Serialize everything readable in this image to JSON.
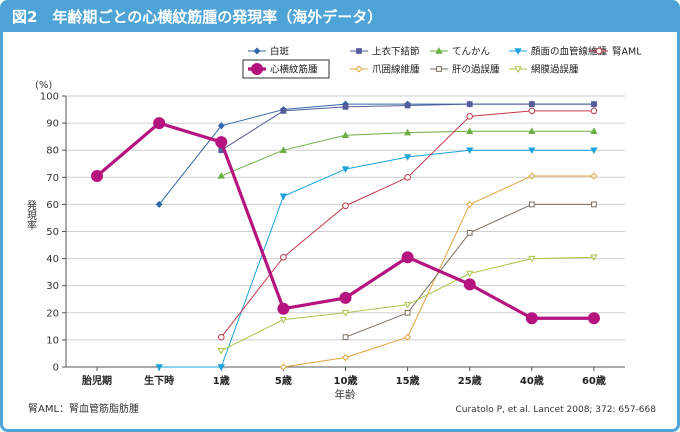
{
  "header": {
    "title": "図2　年齢期ごとの心横紋筋腫の発現率（海外データ）"
  },
  "colors": {
    "header_bg": "#4ea4d6",
    "border": "#4ea4d6",
    "grid": "#cfcfcf",
    "axis": "#555555"
  },
  "footer": {
    "note": "腎AML：腎血管筋脂肪腫",
    "source": "Curatolo P, et al. Lancet 2008; 372: 657-668"
  },
  "chart_data": {
    "type": "line",
    "title": "",
    "xlabel": "年齢",
    "ylabel": "発現率",
    "y_unit": "(%)",
    "ylim": [
      0,
      100
    ],
    "yticks": [
      0,
      10,
      20,
      30,
      40,
      50,
      60,
      70,
      80,
      90,
      100
    ],
    "grid": true,
    "legend_position": "top-right",
    "categories": [
      "胎児期",
      "生下時",
      "1歳",
      "5歳",
      "10歳",
      "15歳",
      "25歳",
      "40歳",
      "60歳"
    ],
    "series": [
      {
        "name": "白斑",
        "color": "#2f68a8",
        "marker": "diamond",
        "width": 1,
        "values": [
          null,
          60,
          89,
          95,
          97,
          97,
          97,
          97,
          97
        ]
      },
      {
        "name": "上衣下結節",
        "color": "#565c9c",
        "marker": "square",
        "width": 1,
        "values": [
          null,
          null,
          80,
          94.5,
          96,
          96.5,
          97,
          97,
          97
        ]
      },
      {
        "name": "てんかん",
        "color": "#6aaf45",
        "marker": "triangle",
        "width": 1,
        "values": [
          null,
          null,
          70.5,
          80,
          85.5,
          86.5,
          87,
          87,
          87
        ]
      },
      {
        "name": "顔面の血管線維腫",
        "color": "#1aa3dd",
        "marker": "triangle-down",
        "width": 1,
        "values": [
          null,
          0,
          0,
          63,
          73,
          77.5,
          80,
          80,
          80
        ]
      },
      {
        "name": "腎AML",
        "color": "#c0394a",
        "marker": "circle-open",
        "width": 1,
        "values": [
          null,
          null,
          11,
          40.5,
          59.5,
          70,
          92.5,
          94.5,
          94.5
        ]
      },
      {
        "name": "心横紋筋腫",
        "color": "#b5137e",
        "marker": "circle-filled",
        "width": 3.2,
        "values": [
          70.5,
          90,
          83,
          21.5,
          25.5,
          40.5,
          30.5,
          18,
          18
        ]
      },
      {
        "name": "爪囲線維腫",
        "color": "#e0a33c",
        "marker": "diamond-open",
        "width": 1,
        "values": [
          null,
          null,
          null,
          0,
          3.5,
          11,
          60,
          70.5,
          70.5
        ]
      },
      {
        "name": "肝の過誤腫",
        "color": "#7d6e60",
        "marker": "square-open",
        "width": 1,
        "values": [
          null,
          null,
          null,
          null,
          11,
          20,
          49.5,
          60,
          60
        ]
      },
      {
        "name": "網膜過誤腫",
        "color": "#a9c64a",
        "marker": "triangle-down-open",
        "width": 1,
        "values": [
          null,
          null,
          6,
          17.5,
          20,
          23,
          34.5,
          40,
          40.5
        ]
      }
    ]
  }
}
